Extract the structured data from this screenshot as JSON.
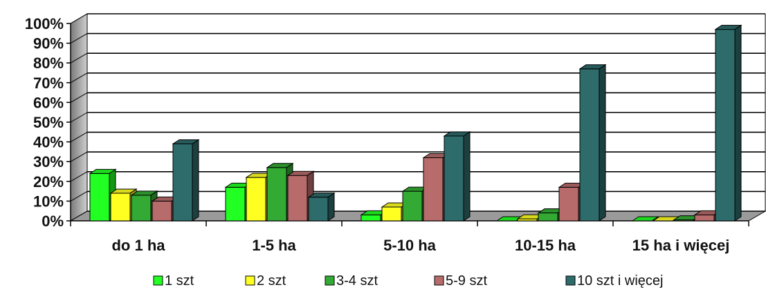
{
  "chart_data": {
    "type": "bar",
    "categories": [
      "do 1 ha",
      "1-5 ha",
      "5-10 ha",
      "10-15 ha",
      "15 ha  i więcej"
    ],
    "series": [
      {
        "name": "1 szt",
        "values": [
          24,
          17,
          3,
          0,
          0
        ],
        "color": "#22ff22"
      },
      {
        "name": "2 szt",
        "values": [
          14,
          22,
          7,
          1,
          0
        ],
        "color": "#ffff22"
      },
      {
        "name": "3-4 szt",
        "values": [
          13,
          27,
          15,
          4,
          0.5
        ],
        "color": "#33aa33"
      },
      {
        "name": "5-9 szt",
        "values": [
          10,
          23,
          32,
          17,
          3
        ],
        "color": "#b86b6b"
      },
      {
        "name": "10 szt i więcej",
        "values": [
          39,
          12,
          43,
          77,
          97
        ],
        "color": "#2e6b6b"
      }
    ],
    "yticks": [
      "0%",
      "10%",
      "20%",
      "30%",
      "40%",
      "50%",
      "60%",
      "70%",
      "80%",
      "90%",
      "100%"
    ],
    "ylim": [
      0,
      100
    ],
    "grid": true,
    "three_d": true,
    "legend_position": "bottom"
  }
}
